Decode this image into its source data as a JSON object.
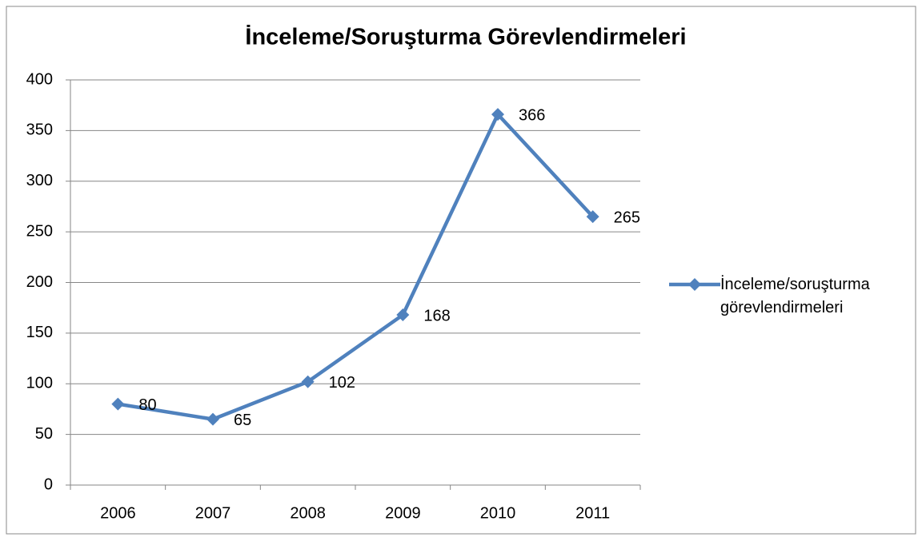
{
  "chart_data": {
    "type": "line",
    "title": "İnceleme/Soruşturma Görevlendirmeleri",
    "categories": [
      "2006",
      "2007",
      "2008",
      "2009",
      "2010",
      "2011"
    ],
    "series": [
      {
        "name": "İnceleme/soruşturma görevlendirmeleri",
        "color": "#4f81bd",
        "values": [
          80,
          65,
          102,
          168,
          366,
          265
        ]
      }
    ],
    "ylim": [
      0,
      400
    ],
    "yticks": [
      0,
      50,
      100,
      150,
      200,
      250,
      300,
      350,
      400
    ],
    "grid": true,
    "legend": "right"
  }
}
